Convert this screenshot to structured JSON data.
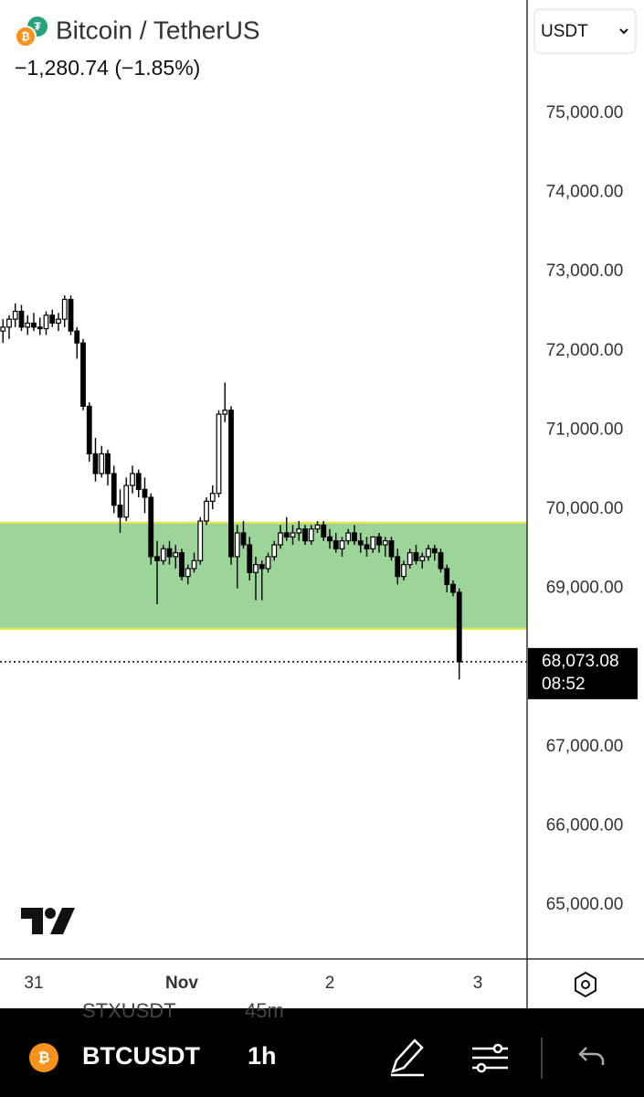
{
  "header": {
    "symbol_name": "Bitcoin / TetherUS",
    "change": "−1,280.74 (−1.85%)",
    "currency": "USDT"
  },
  "toolbar": {
    "symbol": "BTCUSDT",
    "interval": "1h",
    "ghost_symbol": "STXUSDT",
    "ghost_interval": "45m"
  },
  "chart_data": {
    "type": "candlestick",
    "up_color": "#ffffff",
    "down_color": "#000000",
    "x": [
      -5,
      -4,
      -3,
      -2,
      -1,
      0,
      1,
      2,
      3,
      4,
      5,
      6,
      7,
      8,
      9,
      10,
      11,
      12,
      13,
      14,
      15,
      16,
      17,
      18,
      19,
      20,
      21,
      22,
      23,
      24,
      25,
      26,
      27,
      28,
      29,
      30,
      31,
      32,
      33,
      34,
      35,
      36,
      37,
      38,
      39,
      40,
      41,
      42,
      43,
      44,
      45,
      46,
      47,
      48,
      49,
      50,
      51,
      52,
      53,
      54,
      55,
      56,
      57,
      58,
      59,
      60,
      61,
      62,
      63,
      64,
      65,
      66,
      67,
      68,
      69
    ],
    "open": [
      72250,
      72300,
      72400,
      72500,
      72300,
      72350,
      72300,
      72280,
      72450,
      72350,
      72400,
      72650,
      72250,
      72100,
      71300,
      70700,
      70450,
      70700,
      70450,
      70050,
      69900,
      70300,
      70450,
      70250,
      70150,
      69400,
      69350,
      69500,
      69400,
      69450,
      69150,
      69250,
      69350,
      69850,
      70100,
      70200,
      71200,
      71250,
      69400,
      69700,
      69550,
      69200,
      69300,
      69250,
      69400,
      69550,
      69700,
      69650,
      69700,
      69750,
      69600,
      69750,
      69800,
      69650,
      69600,
      69500,
      69600,
      69700,
      69600,
      69550,
      69500,
      69650,
      69550,
      69600,
      69400,
      69150,
      69300,
      69450,
      69350,
      69400,
      69500,
      69450,
      69250,
      69050,
      68950
    ],
    "high": [
      72400,
      72450,
      72600,
      72580,
      72450,
      72480,
      72420,
      72500,
      72520,
      72480,
      72700,
      72700,
      72300,
      72150,
      71350,
      70900,
      70800,
      70750,
      70550,
      70250,
      70400,
      70550,
      70500,
      70400,
      70200,
      69600,
      69550,
      69600,
      69550,
      69500,
      69300,
      69450,
      69900,
      70150,
      70300,
      71250,
      71600,
      71300,
      69800,
      69850,
      69650,
      69400,
      69350,
      69450,
      69600,
      69800,
      69900,
      69800,
      69850,
      69800,
      69800,
      69850,
      69850,
      69750,
      69700,
      69650,
      69750,
      69800,
      69700,
      69650,
      69650,
      69700,
      69650,
      69650,
      69500,
      69350,
      69500,
      69550,
      69450,
      69550,
      69550,
      69500,
      69300,
      69100,
      69000
    ],
    "low": [
      72100,
      72150,
      72300,
      72250,
      72200,
      72250,
      72200,
      72200,
      72300,
      72250,
      72300,
      72200,
      71900,
      71250,
      70600,
      70350,
      70400,
      70300,
      69950,
      69700,
      69850,
      70200,
      70150,
      69950,
      69300,
      68800,
      69300,
      69300,
      69250,
      69100,
      69050,
      69200,
      69300,
      69800,
      70000,
      70150,
      71100,
      69300,
      69000,
      69500,
      69100,
      68850,
      68850,
      69200,
      69350,
      69500,
      69600,
      69550,
      69600,
      69550,
      69550,
      69700,
      69600,
      69500,
      69450,
      69400,
      69550,
      69550,
      69450,
      69400,
      69450,
      69450,
      69400,
      69350,
      69050,
      69100,
      69250,
      69300,
      69250,
      69350,
      69350,
      69200,
      68950,
      68900,
      67850
    ],
    "close": [
      72300,
      72400,
      72500,
      72300,
      72350,
      72300,
      72280,
      72450,
      72350,
      72400,
      72650,
      72250,
      72100,
      71300,
      70700,
      70450,
      70700,
      70450,
      70050,
      69900,
      70300,
      70450,
      70250,
      70150,
      69400,
      69350,
      69500,
      69400,
      69450,
      69150,
      69250,
      69350,
      69850,
      70100,
      70200,
      71200,
      71250,
      69400,
      69700,
      69550,
      69200,
      69300,
      69250,
      69400,
      69550,
      69700,
      69650,
      69700,
      69750,
      69600,
      69750,
      69800,
      69650,
      69600,
      69500,
      69600,
      69700,
      69600,
      69550,
      69500,
      69650,
      69550,
      69600,
      69400,
      69150,
      69300,
      69450,
      69350,
      69400,
      69500,
      69450,
      69250,
      69050,
      68950,
      68073.08
    ],
    "zone": {
      "from": 68490,
      "to": 69830,
      "color": "#9dd49a",
      "edge_color": "#e6e63c"
    },
    "last_price": {
      "value": 68073.08,
      "label": "68,073.08"
    },
    "countdown": "08:52",
    "xlim": [
      -5.48,
      80
    ],
    "xticks": [
      {
        "value": 0,
        "label": "31"
      },
      {
        "value": 24,
        "label": "Nov"
      },
      {
        "value": 48,
        "label": "2"
      },
      {
        "value": 72,
        "label": "3"
      }
    ],
    "ylim": [
      64330,
      76432
    ],
    "yticks": [
      {
        "value": 65000,
        "label": "65,000.00"
      },
      {
        "value": 66000,
        "label": "66,000.00"
      },
      {
        "value": 67000,
        "label": "67,000.00"
      },
      {
        "value": 69000,
        "label": "69,000.00"
      },
      {
        "value": 70000,
        "label": "70,000.00"
      },
      {
        "value": 71000,
        "label": "71,000.00"
      },
      {
        "value": 72000,
        "label": "72,000.00"
      },
      {
        "value": 73000,
        "label": "73,000.00"
      },
      {
        "value": 74000,
        "label": "74,000.00"
      },
      {
        "value": 75000,
        "label": "75,000.00"
      }
    ],
    "grid": false
  }
}
